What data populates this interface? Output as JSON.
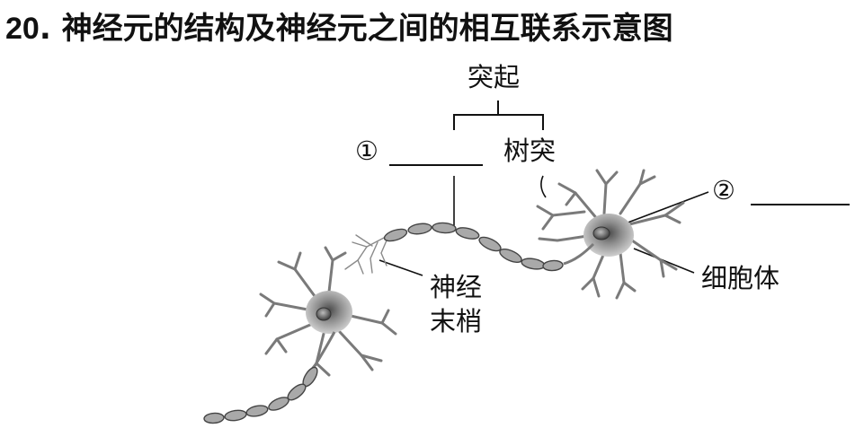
{
  "question": {
    "number": "20",
    "separator": ".",
    "title": "神经元的结构及神经元之间的相互联系示意图"
  },
  "labels": {
    "process_group": "突起",
    "blank_1_marker": "①",
    "dendrite": "树突",
    "blank_2_marker": "②",
    "soma": "细胞体",
    "nerve_ending_line1": "神经",
    "nerve_ending_line2": "末梢"
  },
  "colors": {
    "ink": "#111111",
    "cell_body": "#7a7a7a",
    "axon_segment": "#a9a9a9"
  }
}
